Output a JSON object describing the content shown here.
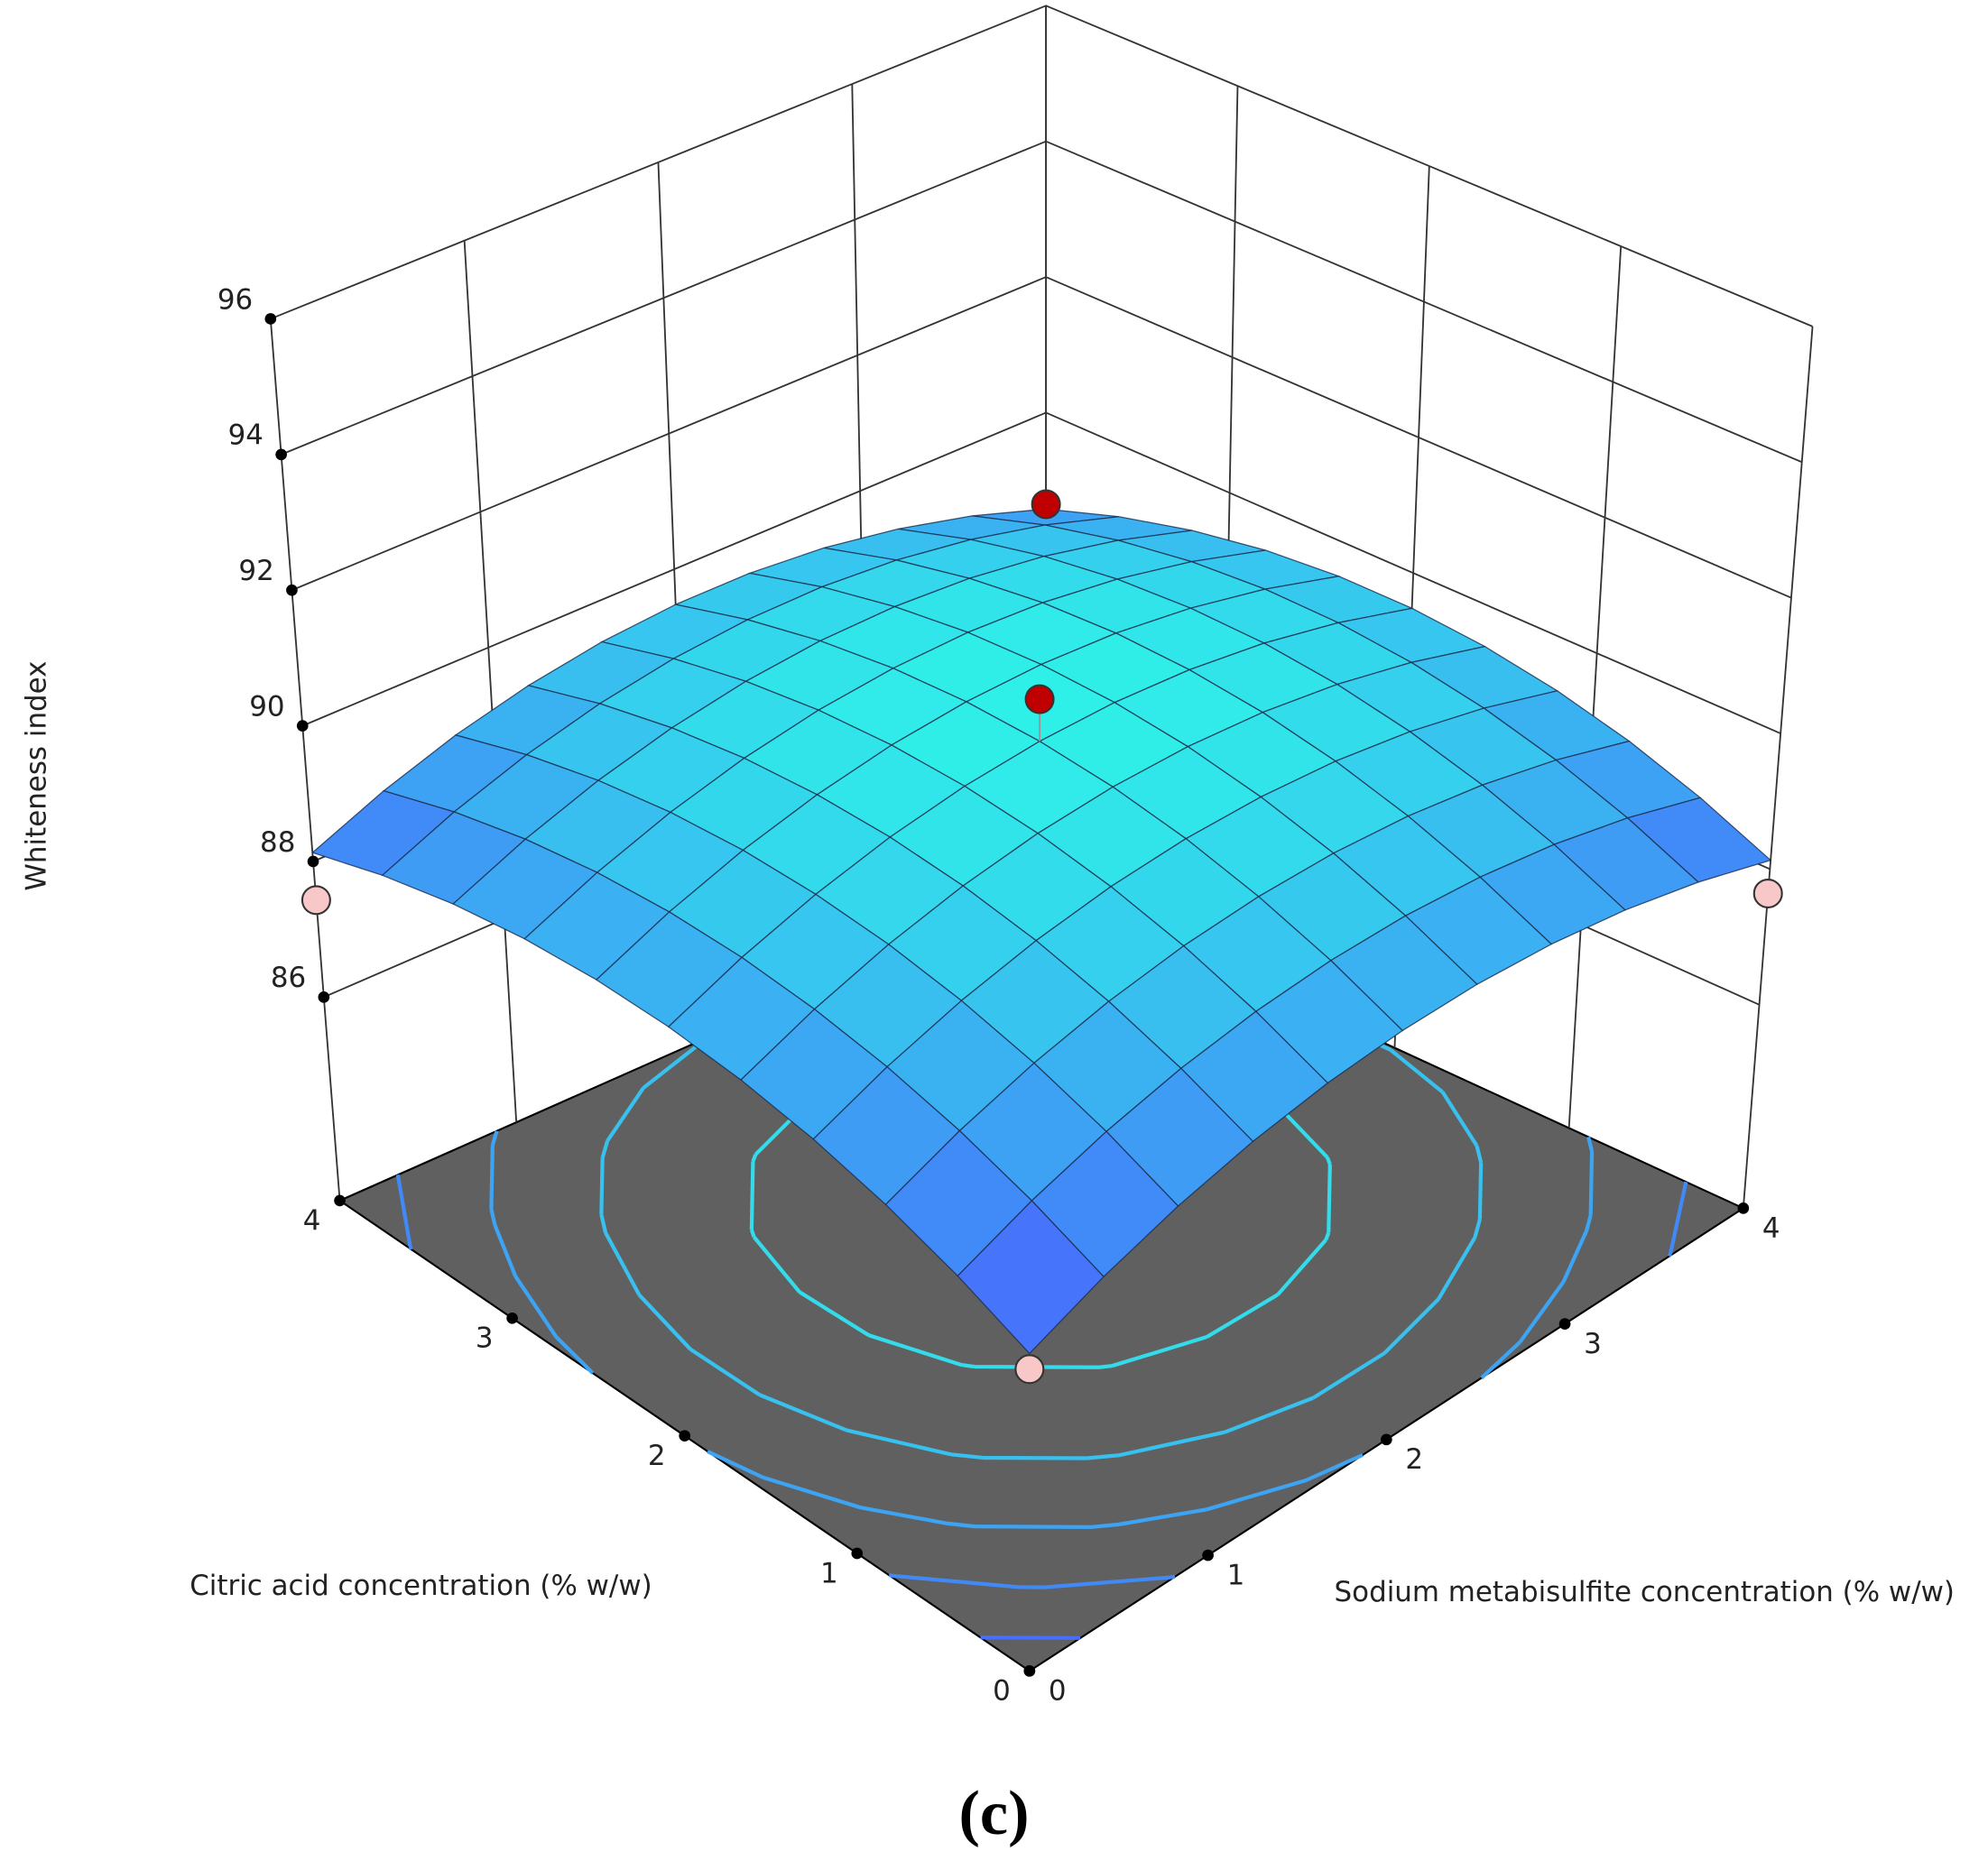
{
  "chart_data": {
    "type": "surface",
    "x_label": "Citric acid concentration (% w/w)",
    "y_label": "Sodium metabisulfite concentration (% w/w)",
    "z_label": "Whiteness index",
    "x": [
      0,
      0.4,
      0.8,
      1.2,
      1.6,
      2.0,
      2.4,
      2.8,
      3.2,
      3.6,
      4.0
    ],
    "y": [
      0,
      0.4,
      0.8,
      1.2,
      1.6,
      2.0,
      2.4,
      2.8,
      3.2,
      3.6,
      4.0
    ],
    "z": [
      [
        87.68,
        88.13,
        88.49,
        88.76,
        88.94,
        89.03,
        89.03,
        88.94,
        88.76,
        88.49,
        88.13
      ],
      [
        88.13,
        88.58,
        88.94,
        89.21,
        89.39,
        89.48,
        89.48,
        89.39,
        89.21,
        88.94,
        88.58
      ],
      [
        88.49,
        88.94,
        89.3,
        89.57,
        89.75,
        89.84,
        89.84,
        89.75,
        89.57,
        89.3,
        88.94
      ],
      [
        88.76,
        89.21,
        89.57,
        89.84,
        90.02,
        90.11,
        90.11,
        90.02,
        89.84,
        89.57,
        89.21
      ],
      [
        88.94,
        89.39,
        89.75,
        90.02,
        90.2,
        90.29,
        90.29,
        90.2,
        90.02,
        89.75,
        89.39
      ],
      [
        89.03,
        89.48,
        89.84,
        90.11,
        90.29,
        90.38,
        90.38,
        90.29,
        90.11,
        89.84,
        89.48
      ],
      [
        89.03,
        89.48,
        89.84,
        90.11,
        90.29,
        90.38,
        90.38,
        90.29,
        90.11,
        89.84,
        89.48
      ],
      [
        88.94,
        89.39,
        89.75,
        90.02,
        90.2,
        90.29,
        90.29,
        90.2,
        90.02,
        89.75,
        89.39
      ],
      [
        88.76,
        89.21,
        89.57,
        89.84,
        90.02,
        90.11,
        90.11,
        90.02,
        89.84,
        89.57,
        89.21
      ],
      [
        88.49,
        88.94,
        89.3,
        89.57,
        89.75,
        89.84,
        89.84,
        89.75,
        89.57,
        89.3,
        88.94
      ],
      [
        88.13,
        88.58,
        88.94,
        89.21,
        89.39,
        89.48,
        89.48,
        89.39,
        89.21,
        88.94,
        88.58
      ]
    ],
    "colors": [
      "#4a5cff",
      "#2ff0e8"
    ],
    "xlim": [
      0,
      4
    ],
    "ylim": [
      0,
      4
    ],
    "zlim": [
      83,
      96
    ],
    "xticks": [
      0,
      1,
      2,
      3,
      4
    ],
    "yticks": [
      0,
      1,
      2,
      3,
      4
    ],
    "zticks": [
      86,
      88,
      90,
      92,
      94,
      96
    ],
    "contour_levels": [
      88,
      88.5,
      89,
      89.5,
      90
    ],
    "floor_color": "#606060",
    "points": {
      "x": [
        0,
        4,
        0,
        4,
        2
      ],
      "y": [
        0,
        0,
        4,
        4,
        2
      ],
      "z": [
        87.45,
        87.43,
        87.64,
        88.65,
        91.0
      ],
      "colors": [
        "#f8c8c8",
        "#f8c8c8",
        "#f8c8c8",
        "#c00000",
        "#c00000"
      ]
    }
  },
  "caption": "(c)"
}
